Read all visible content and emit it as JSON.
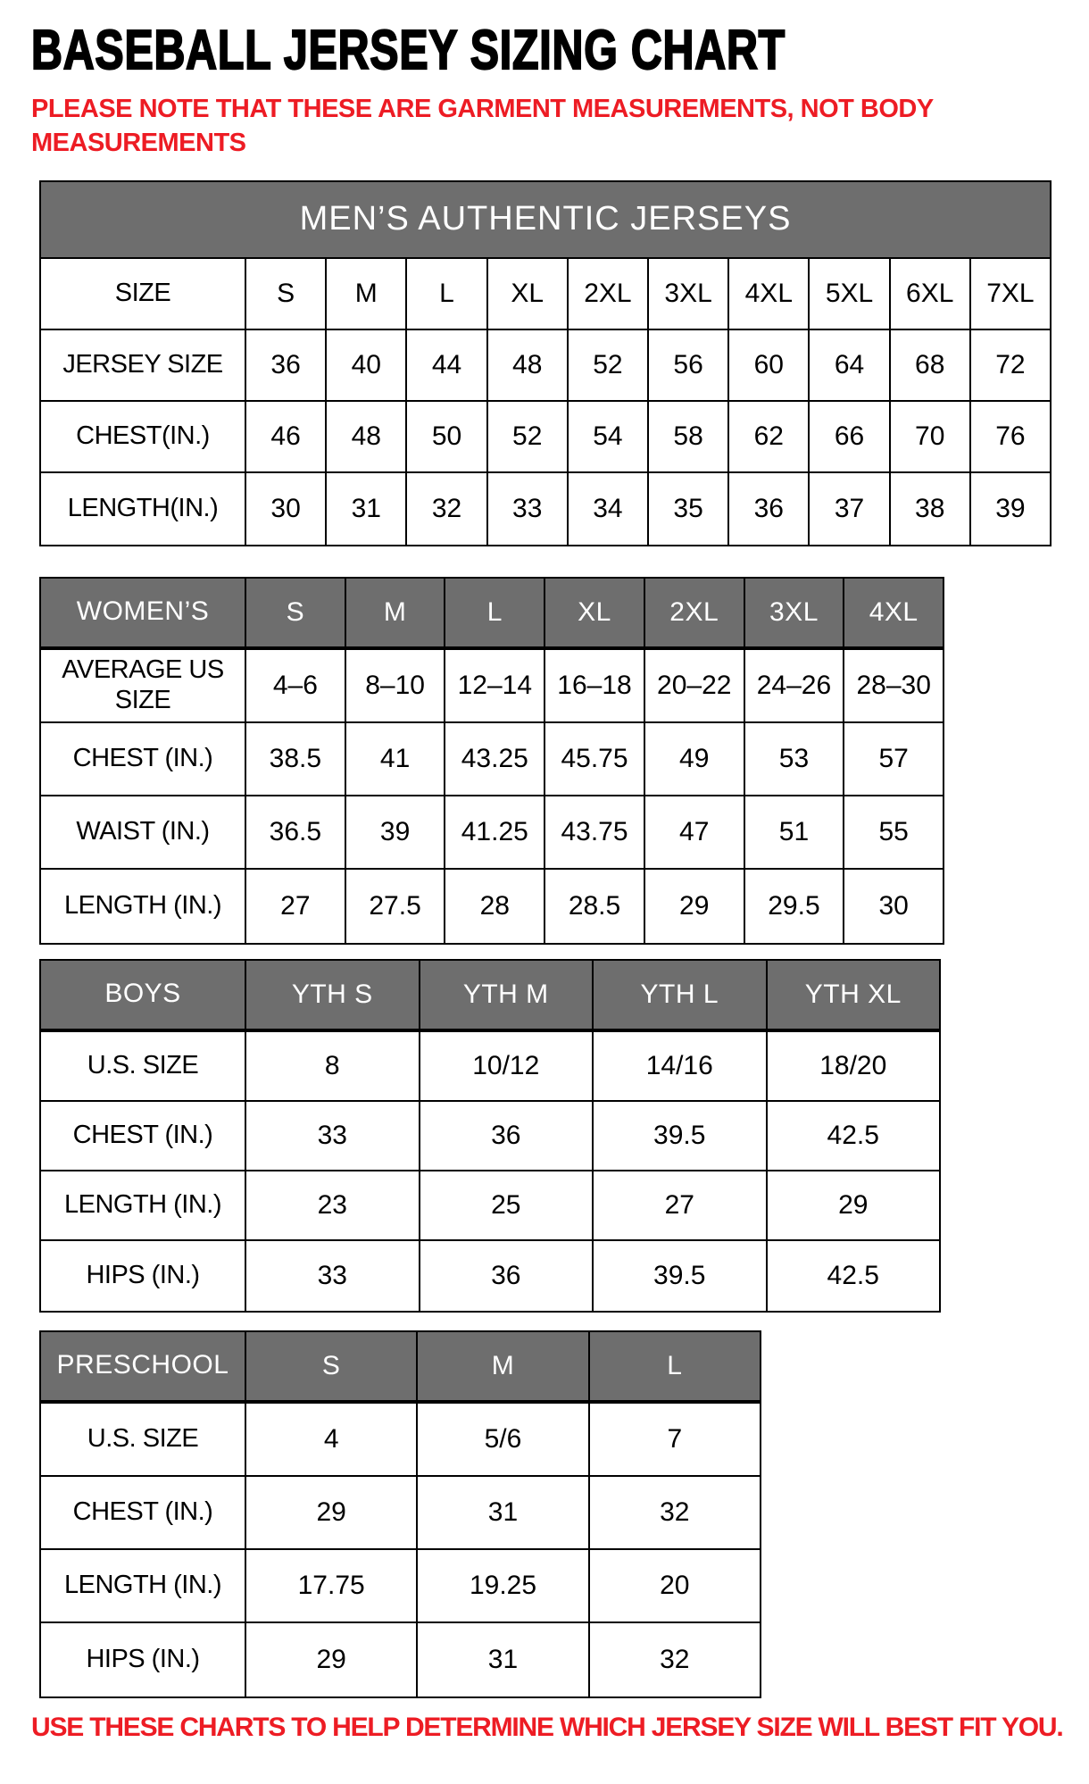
{
  "page": {
    "title": "BASEBALL JERSEY SIZING CHART",
    "note": "PLEASE NOTE THAT THESE ARE GARMENT MEASUREMENTS, NOT BODY MEASUREMENTS",
    "footer": "USE THESE CHARTS TO HELP DETERMINE WHICH JERSEY SIZE WILL BEST FIT YOU.",
    "colors": {
      "header_gray": "#6e6e6e",
      "accent_red": "#ed1c24",
      "border_black": "#000000"
    }
  },
  "chart_data": [
    {
      "name": "mens",
      "type": "table",
      "banner": "MEN’S AUTHENTIC JERSEYS",
      "rows": [
        {
          "label": "SIZE",
          "values": [
            "S",
            "M",
            "L",
            "XL",
            "2XL",
            "3XL",
            "4XL",
            "5XL",
            "6XL",
            "7XL"
          ]
        },
        {
          "label": "JERSEY SIZE",
          "values": [
            "36",
            "40",
            "44",
            "48",
            "52",
            "56",
            "60",
            "64",
            "68",
            "72"
          ]
        },
        {
          "label": "CHEST(IN.)",
          "values": [
            "46",
            "48",
            "50",
            "52",
            "54",
            "58",
            "62",
            "66",
            "70",
            "76"
          ]
        },
        {
          "label": "LENGTH(IN.)",
          "values": [
            "30",
            "31",
            "32",
            "33",
            "34",
            "35",
            "36",
            "37",
            "38",
            "39"
          ]
        }
      ]
    },
    {
      "name": "womens",
      "type": "table",
      "header": {
        "label": "WOMEN’S",
        "sizes": [
          "S",
          "M",
          "L",
          "XL",
          "2XL",
          "3XL",
          "4XL"
        ]
      },
      "rows": [
        {
          "label": "AVERAGE US SIZE",
          "values": [
            "4–6",
            "8–10",
            "12–14",
            "16–18",
            "20–22",
            "24–26",
            "28–30"
          ]
        },
        {
          "label": "CHEST (IN.)",
          "values": [
            "38.5",
            "41",
            "43.25",
            "45.75",
            "49",
            "53",
            "57"
          ]
        },
        {
          "label": "WAIST (IN.)",
          "values": [
            "36.5",
            "39",
            "41.25",
            "43.75",
            "47",
            "51",
            "55"
          ]
        },
        {
          "label": "LENGTH (IN.)",
          "values": [
            "27",
            "27.5",
            "28",
            "28.5",
            "29",
            "29.5",
            "30"
          ]
        }
      ]
    },
    {
      "name": "boys",
      "type": "table",
      "header": {
        "label": "BOYS",
        "sizes": [
          "YTH S",
          "YTH M",
          "YTH L",
          "YTH XL"
        ]
      },
      "rows": [
        {
          "label": "U.S. SIZE",
          "values": [
            "8",
            "10/12",
            "14/16",
            "18/20"
          ]
        },
        {
          "label": "CHEST (IN.)",
          "values": [
            "33",
            "36",
            "39.5",
            "42.5"
          ]
        },
        {
          "label": "LENGTH (IN.)",
          "values": [
            "23",
            "25",
            "27",
            "29"
          ]
        },
        {
          "label": "HIPS (IN.)",
          "values": [
            "33",
            "36",
            "39.5",
            "42.5"
          ]
        }
      ]
    },
    {
      "name": "preschool",
      "type": "table",
      "header": {
        "label": "PRESCHOOL",
        "sizes": [
          "S",
          "M",
          "L"
        ]
      },
      "rows": [
        {
          "label": "U.S. SIZE",
          "values": [
            "4",
            "5/6",
            "7"
          ]
        },
        {
          "label": "CHEST (IN.)",
          "values": [
            "29",
            "31",
            "32"
          ]
        },
        {
          "label": "LENGTH (IN.)",
          "values": [
            "17.75",
            "19.25",
            "20"
          ]
        },
        {
          "label": "HIPS (IN.)",
          "values": [
            "29",
            "31",
            "32"
          ]
        }
      ]
    }
  ]
}
